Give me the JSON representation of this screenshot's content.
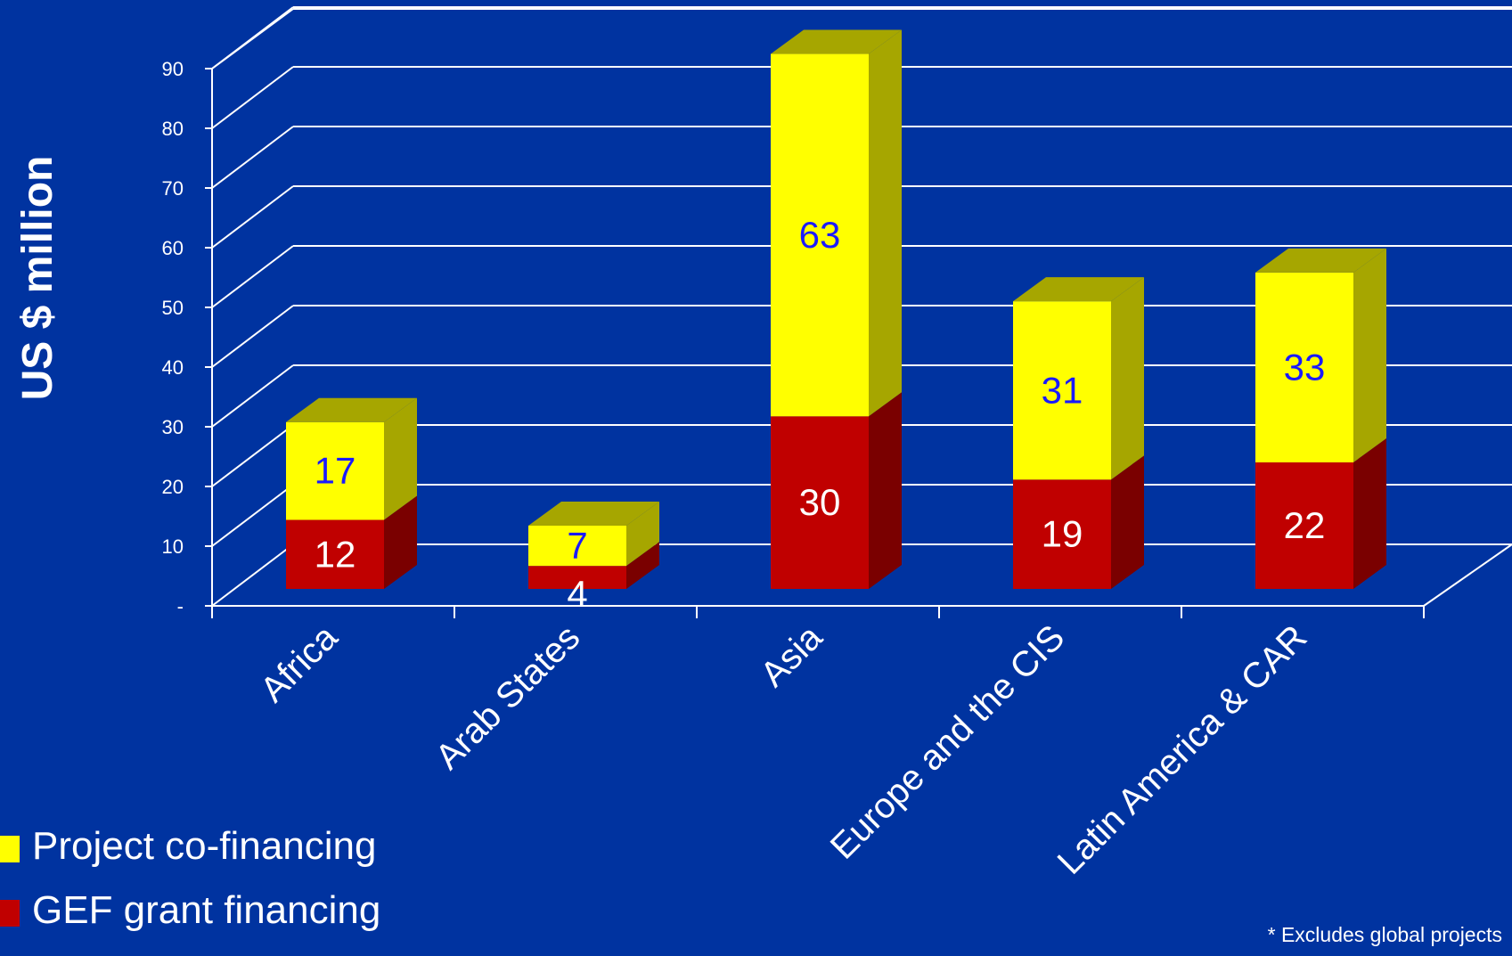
{
  "chart_data": {
    "type": "bar",
    "stacked": true,
    "three_d": true,
    "ylabel": "US $ million",
    "ylim": [
      0,
      90
    ],
    "yticks": [
      {
        "value": 0,
        "label": "-"
      },
      {
        "value": 10,
        "label": "10"
      },
      {
        "value": 20,
        "label": "20"
      },
      {
        "value": 30,
        "label": "30"
      },
      {
        "value": 40,
        "label": "40"
      },
      {
        "value": 50,
        "label": "50"
      },
      {
        "value": 60,
        "label": "60"
      },
      {
        "value": 70,
        "label": "70"
      },
      {
        "value": 80,
        "label": "80"
      },
      {
        "value": 90,
        "label": "90"
      }
    ],
    "grid": true,
    "categories": [
      "Africa",
      "Arab States",
      "Asia",
      "Europe and the CIS",
      "Latin America & CAR"
    ],
    "series": [
      {
        "name": "GEF grant financing",
        "values": [
          12,
          4,
          30,
          19,
          22
        ],
        "color": "#c00000",
        "side_color": "#7a0000",
        "label_color": "#ffffff"
      },
      {
        "name": "Project co-financing",
        "values": [
          17,
          7,
          63,
          31,
          33
        ],
        "color": "#ffff00",
        "side_color": "#a6a600",
        "label_color": "#1a1aff"
      }
    ],
    "legend": {
      "position": "bottom-left",
      "items": [
        {
          "label": "Project co-financing",
          "color": "#ffff00"
        },
        {
          "label": "GEF grant financing",
          "color": "#c00000"
        }
      ]
    },
    "footnote": "* Excludes global projects",
    "colors": {
      "background": "#0033a0",
      "grid": "#ffffff",
      "text": "#ffffff"
    }
  }
}
